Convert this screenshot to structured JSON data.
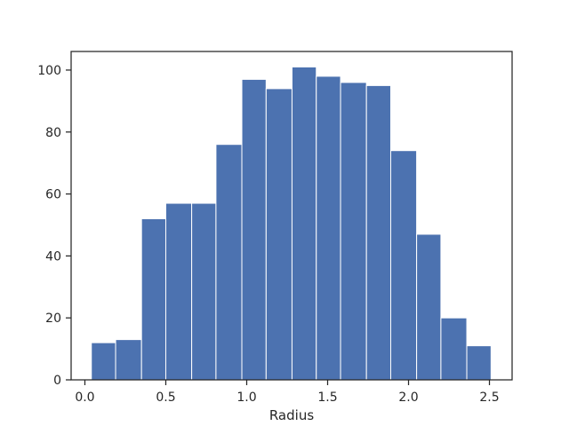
{
  "chart_data": {
    "type": "bar",
    "title": "",
    "xlabel": "Radius",
    "ylabel": "",
    "bar_color": "#4c72b0",
    "bar_edge_color": "#ffffff",
    "axis_color": "#262626",
    "grid": false,
    "xlim": [
      -0.085,
      2.64
    ],
    "ylim": [
      0,
      106
    ],
    "bins": [
      {
        "x0": 0.04,
        "x1": 0.19,
        "count": 12
      },
      {
        "x0": 0.19,
        "x1": 0.35,
        "count": 13
      },
      {
        "x0": 0.35,
        "x1": 0.5,
        "count": 52
      },
      {
        "x0": 0.5,
        "x1": 0.66,
        "count": 57
      },
      {
        "x0": 0.66,
        "x1": 0.81,
        "count": 57
      },
      {
        "x0": 0.81,
        "x1": 0.97,
        "count": 76
      },
      {
        "x0": 0.97,
        "x1": 1.12,
        "count": 97
      },
      {
        "x0": 1.12,
        "x1": 1.28,
        "count": 94
      },
      {
        "x0": 1.28,
        "x1": 1.43,
        "count": 101
      },
      {
        "x0": 1.43,
        "x1": 1.58,
        "count": 98
      },
      {
        "x0": 1.58,
        "x1": 1.74,
        "count": 96
      },
      {
        "x0": 1.74,
        "x1": 1.89,
        "count": 95
      },
      {
        "x0": 1.89,
        "x1": 2.05,
        "count": 74
      },
      {
        "x0": 2.05,
        "x1": 2.2,
        "count": 47
      },
      {
        "x0": 2.2,
        "x1": 2.36,
        "count": 20
      },
      {
        "x0": 2.36,
        "x1": 2.51,
        "count": 11
      }
    ],
    "x_ticks": [
      {
        "value": 0.0,
        "label": "0.0"
      },
      {
        "value": 0.5,
        "label": "0.5"
      },
      {
        "value": 1.0,
        "label": "1.0"
      },
      {
        "value": 1.5,
        "label": "1.5"
      },
      {
        "value": 2.0,
        "label": "2.0"
      },
      {
        "value": 2.5,
        "label": "2.5"
      }
    ],
    "y_ticks": [
      {
        "value": 0,
        "label": "0"
      },
      {
        "value": 20,
        "label": "20"
      },
      {
        "value": 40,
        "label": "40"
      },
      {
        "value": 60,
        "label": "60"
      },
      {
        "value": 80,
        "label": "80"
      },
      {
        "value": 100,
        "label": "100"
      }
    ]
  }
}
